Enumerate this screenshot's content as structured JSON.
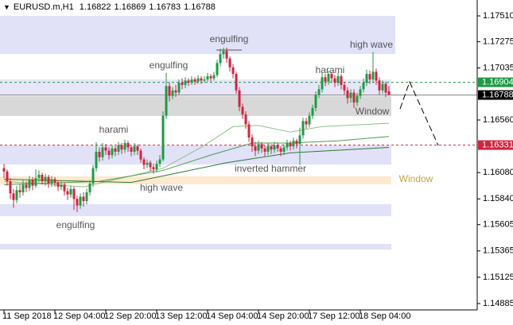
{
  "chart_data": {
    "type": "candlestick",
    "symbol": "EURUSD.m,H1",
    "categories": [
      "11 Sep 2018",
      null,
      null,
      null,
      null,
      null,
      null,
      null,
      null,
      null,
      null,
      null,
      null,
      null,
      null,
      null,
      "12 Sep 04:00",
      null,
      null,
      null,
      null,
      null,
      null,
      null,
      null,
      null,
      null,
      null,
      null,
      null,
      null,
      null,
      "12 Sep 20:00",
      null,
      null,
      null,
      null,
      null,
      null,
      null,
      null,
      null,
      null,
      null,
      null,
      null,
      null,
      null,
      "13 Sep 12:00",
      null,
      null,
      null,
      null,
      null,
      null,
      null,
      null,
      null,
      null,
      null,
      null,
      null,
      null,
      null,
      "14 Sep 04:00",
      null,
      null,
      null,
      null,
      null,
      null,
      null,
      null,
      null,
      null,
      null,
      null,
      null,
      null,
      null,
      "14 Sep 20:00",
      null,
      null,
      null,
      null,
      null,
      null,
      null,
      null,
      null,
      null,
      null,
      null,
      null,
      null,
      null,
      "17 Sep 12:00",
      null,
      null,
      null,
      null,
      null,
      null,
      null,
      null,
      null,
      null,
      null,
      null,
      null,
      null,
      null,
      "18 Sep 04:00",
      null,
      null,
      null,
      null,
      null,
      null,
      null,
      null,
      null
    ],
    "open": [
      1.1612,
      1.1609,
      1.16,
      1.1589,
      1.1583,
      1.1592,
      1.159,
      1.1597,
      1.1594,
      1.1601,
      1.1596,
      1.1603,
      1.1606,
      1.16,
      1.1604,
      1.1598,
      1.1602,
      1.1599,
      1.1595,
      1.1597,
      1.1591,
      1.1588,
      1.1593,
      1.1584,
      1.1578,
      1.1586,
      1.1582,
      1.159,
      1.1598,
      1.1612,
      1.1627,
      1.1622,
      1.1631,
      1.1628,
      1.1624,
      1.163,
      1.1627,
      1.1633,
      1.1629,
      1.1635,
      1.1631,
      1.1627,
      1.1632,
      1.1628,
      1.162,
      1.1615,
      1.1617,
      1.1613,
      1.1611,
      1.1616,
      1.162,
      1.166,
      1.1687,
      1.1678,
      1.1683,
      1.1681,
      1.169,
      1.1688,
      1.1692,
      1.169,
      1.1693,
      1.1691,
      1.1694,
      1.1692,
      1.1693,
      1.1696,
      1.1694,
      1.1697,
      1.1708,
      1.1716,
      1.1719,
      1.1712,
      1.1704,
      1.1698,
      1.1683,
      1.1668,
      1.1661,
      1.1652,
      1.164,
      1.1632,
      1.1628,
      1.1634,
      1.163,
      1.1627,
      1.1632,
      1.1629,
      1.1633,
      1.163,
      1.1627,
      1.1631,
      1.1635,
      1.1632,
      1.1637,
      1.1634,
      1.1642,
      1.1655,
      1.1652,
      1.166,
      1.1667,
      1.1679,
      1.1684,
      1.1695,
      1.1691,
      1.1698,
      1.1694,
      1.169,
      1.1696,
      1.1688,
      1.1683,
      1.1676,
      1.1681,
      1.1672,
      1.1678,
      1.1684,
      1.169,
      1.1698,
      1.1693,
      1.17,
      1.1692,
      1.1683,
      1.1689,
      1.16822
    ],
    "high": [
      1.1616,
      1.1611,
      1.1603,
      1.1593,
      1.1596,
      1.1597,
      1.1601,
      1.16,
      1.1605,
      1.1604,
      1.1611,
      1.161,
      1.1608,
      1.1607,
      1.1606,
      1.1605,
      1.1604,
      1.1601,
      1.16,
      1.1599,
      1.1594,
      1.1596,
      1.1595,
      1.1587,
      1.1589,
      1.159,
      1.1593,
      1.1601,
      1.1615,
      1.1636,
      1.1631,
      1.1635,
      1.1634,
      1.1631,
      1.1633,
      1.1632,
      1.1636,
      1.1635,
      1.1638,
      1.1637,
      1.1633,
      1.1635,
      1.1634,
      1.163,
      1.1622,
      1.162,
      1.1619,
      1.1616,
      1.1619,
      1.1624,
      1.1664,
      1.1699,
      1.169,
      1.1686,
      1.1688,
      1.1693,
      1.1694,
      1.1695,
      1.1694,
      1.1696,
      1.1695,
      1.1697,
      1.1696,
      1.1696,
      1.1699,
      1.1698,
      1.17,
      1.1711,
      1.1721,
      1.1722,
      1.1722,
      1.1714,
      1.1707,
      1.17,
      1.1686,
      1.1671,
      1.1664,
      1.1655,
      1.1643,
      1.1636,
      1.1637,
      1.1636,
      1.1633,
      1.1635,
      1.1634,
      1.1636,
      1.1635,
      1.1632,
      1.1634,
      1.1638,
      1.1637,
      1.164,
      1.1639,
      1.1649,
      1.1658,
      1.1658,
      1.1663,
      1.167,
      1.1682,
      1.1688,
      1.1699,
      1.1698,
      1.1701,
      1.17,
      1.1697,
      1.1699,
      1.1698,
      1.1691,
      1.1686,
      1.1684,
      1.1684,
      1.1681,
      1.1687,
      1.1694,
      1.1702,
      1.1701,
      1.1718,
      1.1703,
      1.1695,
      1.1692,
      1.1691,
      1.16869
    ],
    "low": [
      1.1603,
      1.1596,
      1.1584,
      1.1576,
      1.158,
      1.1585,
      1.1587,
      1.159,
      1.1591,
      1.1592,
      1.1594,
      1.1599,
      1.1597,
      1.1596,
      1.1594,
      1.1595,
      1.1595,
      1.1591,
      1.1592,
      1.1587,
      1.1583,
      1.1585,
      1.1574,
      1.1572,
      1.1575,
      1.1577,
      1.1579,
      1.1587,
      1.1595,
      1.1609,
      1.1618,
      1.1619,
      1.1624,
      1.162,
      1.1621,
      1.1623,
      1.1624,
      1.1625,
      1.1626,
      1.1627,
      1.1623,
      1.1624,
      1.1624,
      1.1617,
      1.1611,
      1.1612,
      1.1609,
      1.1607,
      1.1608,
      1.1613,
      1.1618,
      1.1657,
      1.1673,
      1.1675,
      1.1677,
      1.1679,
      1.1684,
      1.1685,
      1.1687,
      1.1688,
      1.1688,
      1.1689,
      1.1689,
      1.169,
      1.1691,
      1.1691,
      1.1692,
      1.1695,
      1.1705,
      1.1712,
      1.1708,
      1.17,
      1.1694,
      1.168,
      1.1664,
      1.1657,
      1.1648,
      1.1636,
      1.1627,
      1.1623,
      1.1625,
      1.1626,
      1.1623,
      1.1624,
      1.1625,
      1.1626,
      1.1627,
      1.1623,
      1.1624,
      1.1628,
      1.1628,
      1.1629,
      1.163,
      1.1615,
      1.1639,
      1.1648,
      1.1649,
      1.1657,
      1.1664,
      1.1676,
      1.1681,
      1.1687,
      1.1688,
      1.169,
      1.1686,
      1.1687,
      1.1684,
      1.1679,
      1.1671,
      1.1672,
      1.1667,
      1.1669,
      1.1675,
      1.1681,
      1.1687,
      1.1689,
      1.169,
      1.1688,
      1.1679,
      1.168,
      1.1677,
      1.16783
    ],
    "close": [
      1.1609,
      1.16,
      1.1589,
      1.1583,
      1.1592,
      1.159,
      1.1597,
      1.1594,
      1.1601,
      1.1596,
      1.1603,
      1.1606,
      1.16,
      1.1604,
      1.1598,
      1.1602,
      1.1599,
      1.1595,
      1.1597,
      1.1591,
      1.1588,
      1.1593,
      1.1584,
      1.1578,
      1.1586,
      1.1582,
      1.159,
      1.1598,
      1.1612,
      1.1627,
      1.1622,
      1.1631,
      1.1628,
      1.1624,
      1.163,
      1.1627,
      1.1633,
      1.1629,
      1.1635,
      1.1631,
      1.1627,
      1.1632,
      1.1628,
      1.162,
      1.1615,
      1.1617,
      1.1613,
      1.1611,
      1.1616,
      1.162,
      1.166,
      1.1687,
      1.1678,
      1.1683,
      1.1681,
      1.169,
      1.1688,
      1.1692,
      1.169,
      1.1693,
      1.1691,
      1.1694,
      1.1692,
      1.1693,
      1.1696,
      1.1694,
      1.1697,
      1.1708,
      1.1716,
      1.1719,
      1.1712,
      1.1704,
      1.1698,
      1.1683,
      1.1668,
      1.1661,
      1.1652,
      1.164,
      1.1632,
      1.1628,
      1.1634,
      1.163,
      1.1627,
      1.1632,
      1.1629,
      1.1633,
      1.163,
      1.1627,
      1.1631,
      1.1635,
      1.1632,
      1.1637,
      1.1634,
      1.1642,
      1.1655,
      1.1652,
      1.166,
      1.1667,
      1.1679,
      1.1684,
      1.1695,
      1.1691,
      1.1698,
      1.1694,
      1.169,
      1.1696,
      1.1688,
      1.1683,
      1.1676,
      1.1681,
      1.1672,
      1.1678,
      1.1684,
      1.169,
      1.1698,
      1.1693,
      1.17,
      1.1692,
      1.1683,
      1.1689,
      1.1681,
      1.16788
    ],
    "up_color": "#1f9a45",
    "down_color": "#d0243f",
    "ylim": [
      1.14827,
      1.17655
    ],
    "yticks": [
      {
        "value": 1.1751,
        "label": "1.17510"
      },
      {
        "value": 1.17275,
        "label": "1.17275"
      },
      {
        "value": 1.17035,
        "label": "1.17035"
      },
      {
        "value": 1.1656,
        "label": "1.16560"
      },
      {
        "value": 1.1608,
        "label": "1.16080"
      },
      {
        "value": 1.1584,
        "label": "1.15840"
      },
      {
        "value": 1.15605,
        "label": "1.15605"
      },
      {
        "value": 1.15365,
        "label": "1.15365"
      },
      {
        "value": 1.15125,
        "label": "1.15125"
      },
      {
        "value": 1.14885,
        "label": "1.14885"
      }
    ],
    "zones": [
      {
        "from": 1.17162,
        "to": 1.1751,
        "color": "#e1e1f8"
      },
      {
        "from": 1.16785,
        "to": 1.1693,
        "color": "#e6e6f8"
      },
      {
        "from": 1.16597,
        "to": 1.16778,
        "color": "#d8d8d8"
      },
      {
        "from": 1.16154,
        "to": 1.16328,
        "color": "#e1e1f8"
      },
      {
        "from": 1.15973,
        "to": 1.16046,
        "color": "#fde9cf"
      },
      {
        "from": 1.15683,
        "to": 1.15792,
        "color": "#e1e1f8"
      },
      {
        "from": 1.15378,
        "to": 1.15429,
        "color": "#e1e1f8"
      }
    ],
    "levels": [
      {
        "value": 1.16904,
        "color": "#1f9a45",
        "dashed": true
      },
      {
        "value": 1.16788,
        "color": "#808080",
        "dashed": false
      },
      {
        "value": 1.16331,
        "color": "#d0243f",
        "dashed": true
      }
    ],
    "moving_averages": [
      {
        "color": "#8cc08c",
        "x": [
          0,
          25,
          40,
          50,
          62,
          72,
          80,
          90,
          100,
          121
        ],
        "values": [
          1.16,
          1.1595,
          1.1605,
          1.1612,
          1.1631,
          1.165,
          1.1651,
          1.1645,
          1.165,
          1.1653
        ]
      },
      {
        "color": "#4f9a4f",
        "x": [
          0,
          30,
          50,
          65,
          78,
          90,
          105,
          121
        ],
        "values": [
          1.1597,
          1.16,
          1.161,
          1.1624,
          1.1635,
          1.1635,
          1.1637,
          1.1641
        ]
      },
      {
        "color": "#2f7a2f",
        "x": [
          0,
          40,
          55,
          70,
          90,
          121
        ],
        "values": [
          1.1602,
          1.1599,
          1.1608,
          1.1617,
          1.1626,
          1.1631
        ]
      }
    ],
    "annotations": [
      "engulfing",
      "engulfing",
      "harami",
      "harami",
      "high wave",
      "Window",
      "inverted hammer",
      "high wave",
      "engulfing",
      "Window"
    ]
  }
}
